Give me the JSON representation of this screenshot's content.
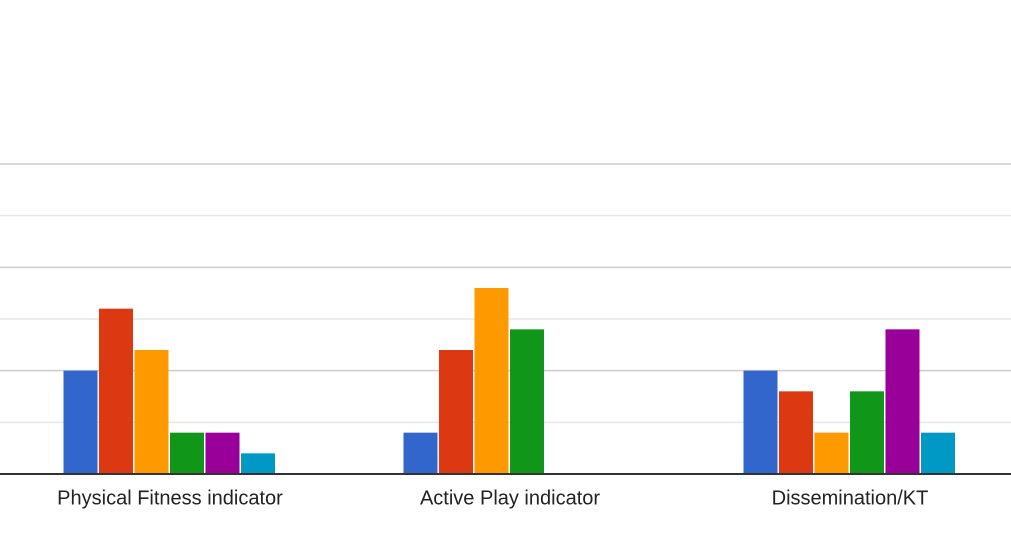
{
  "chart_data": {
    "type": "bar",
    "categories": [
      "Physical Fitness indicator",
      "Active Play indicator",
      "Dissemination/KT"
    ],
    "series": [
      {
        "color": "#3366cc",
        "values": [
          5,
          2,
          5
        ]
      },
      {
        "color": "#dc3912",
        "values": [
          8,
          6,
          4
        ]
      },
      {
        "color": "#ff9900",
        "values": [
          6,
          9,
          2
        ]
      },
      {
        "color": "#109618",
        "values": [
          2,
          7,
          4
        ]
      },
      {
        "color": "#990099",
        "values": [
          2,
          0,
          7
        ]
      },
      {
        "color": "#0099c6",
        "values": [
          1,
          0,
          2
        ]
      }
    ],
    "ylim": [
      0,
      15
    ],
    "yticks": [
      0,
      5,
      10,
      15
    ],
    "minor_yticks": [
      2.5,
      7.5,
      12.5
    ],
    "grid": true
  }
}
